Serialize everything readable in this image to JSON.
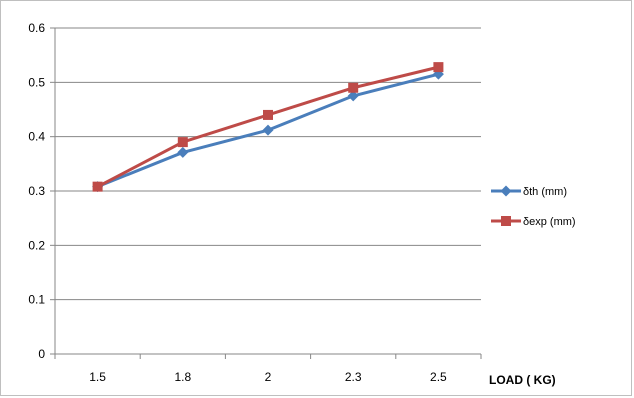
{
  "chart_data": {
    "type": "line",
    "x": [
      "1.5",
      "1.8",
      "2",
      "2.3",
      "2.5"
    ],
    "xlabel": "LOAD  ( KG)",
    "ylabel": "",
    "ylim": [
      0,
      0.6
    ],
    "yticks": [
      "0",
      "0.1",
      "0.2",
      "0.3",
      "0.4",
      "0.5",
      "0.6"
    ],
    "grid": true,
    "legend": "right",
    "series": [
      {
        "name": "δth (mm)",
        "values": [
          0.308,
          0.371,
          0.412,
          0.475,
          0.515
        ],
        "color": "#4a7ebb",
        "marker": "diamond"
      },
      {
        "name": "δexp (mm)",
        "values": [
          0.308,
          0.39,
          0.44,
          0.49,
          0.528
        ],
        "color": "#be4b48",
        "marker": "square"
      }
    ]
  }
}
